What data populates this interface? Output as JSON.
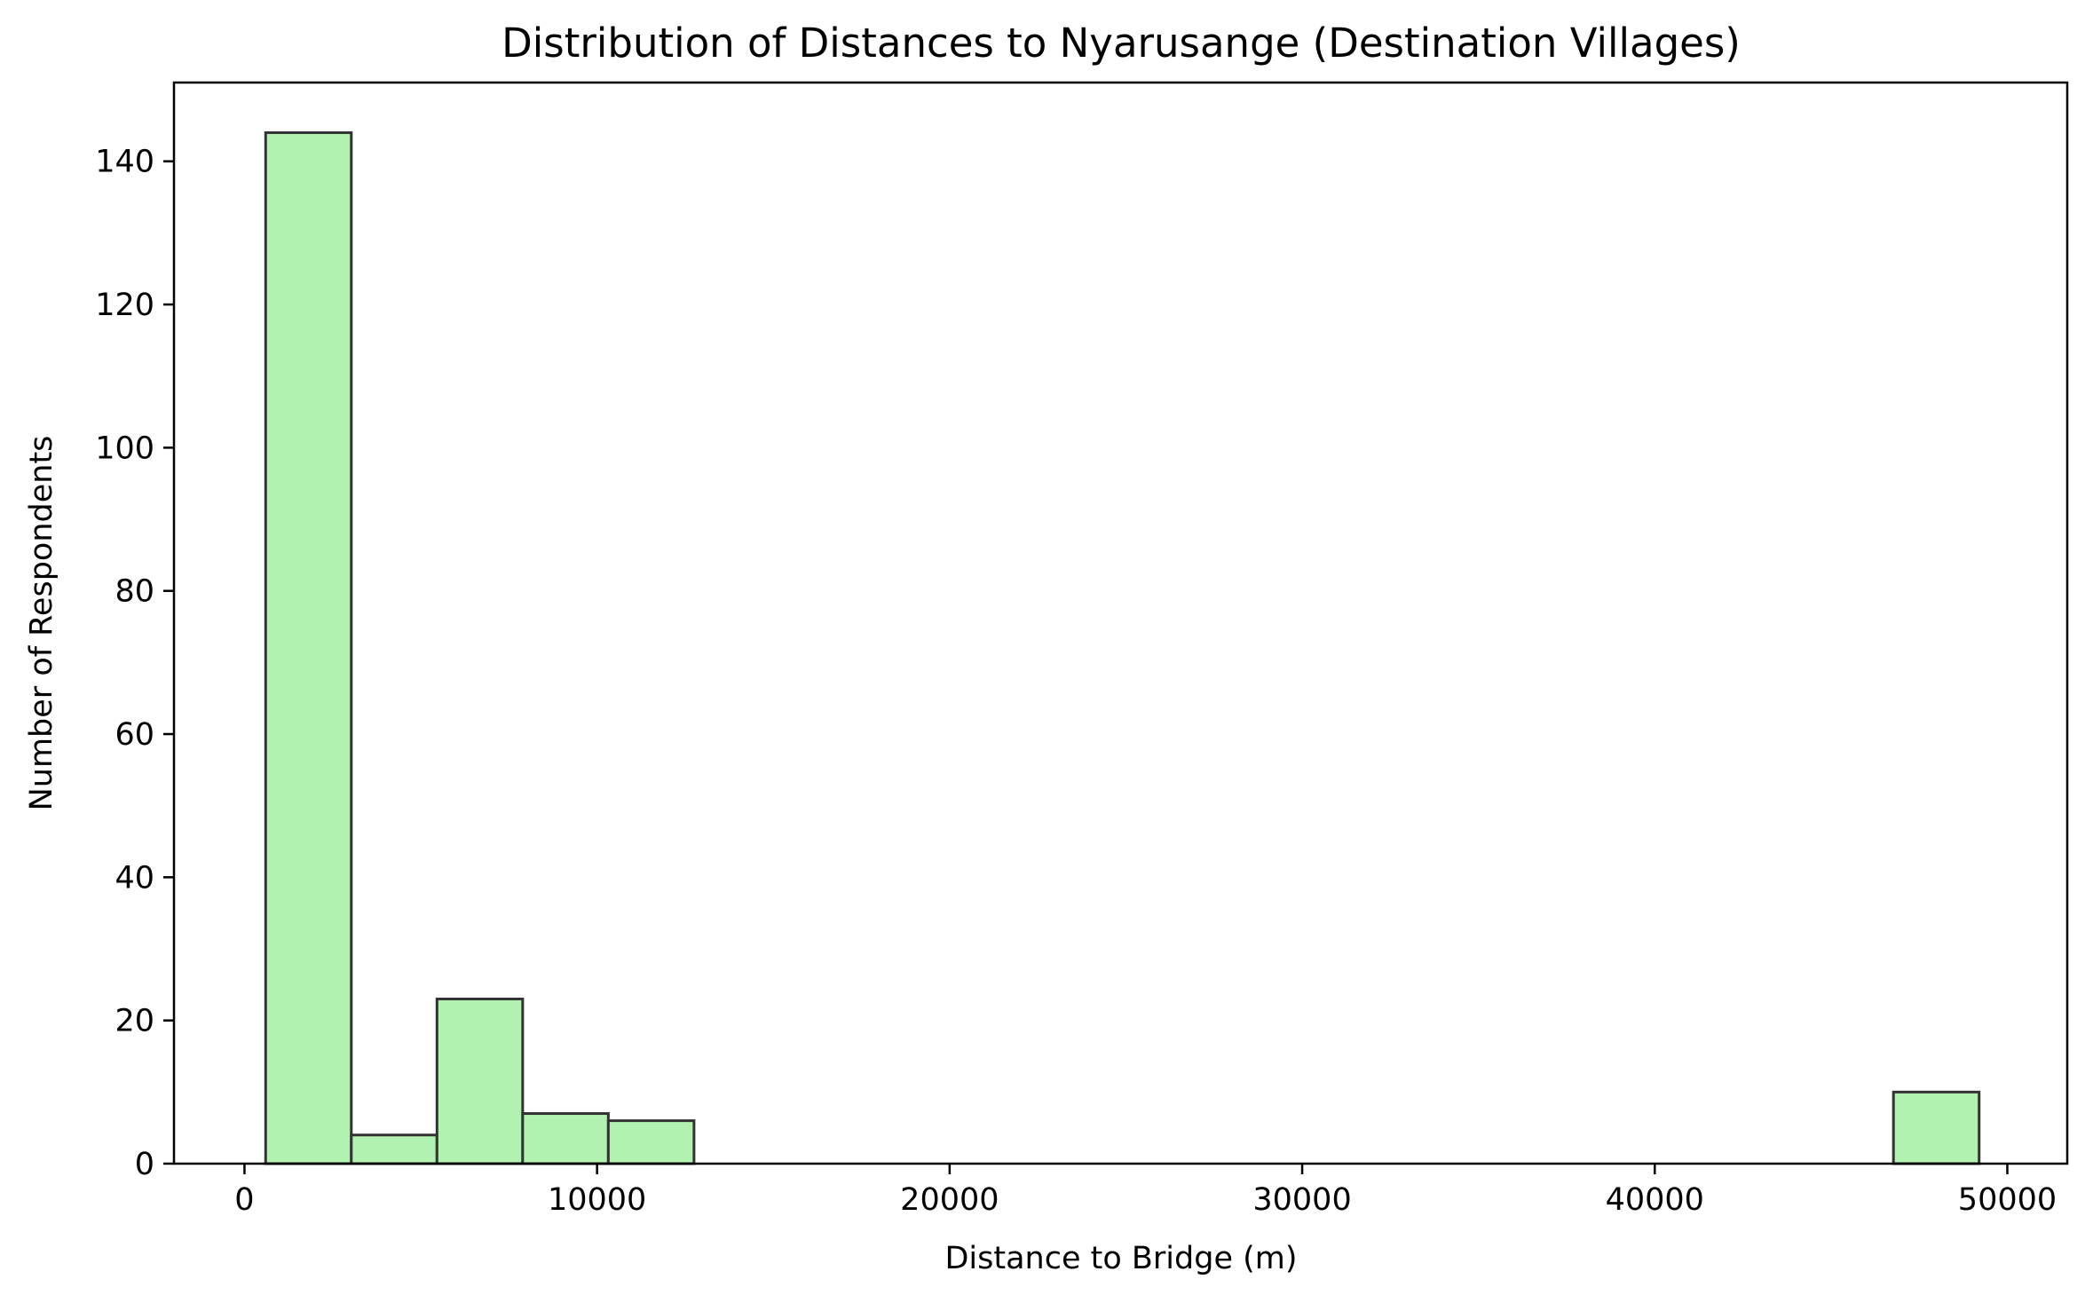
{
  "chart_data": {
    "type": "bar",
    "title": "Distribution of Distances to Nyarusange (Destination Villages)",
    "xlabel": "Distance to Bridge (m)",
    "ylabel": "Number of Respondents",
    "xlim": [
      -2000,
      51700
    ],
    "ylim": [
      0,
      151
    ],
    "x_ticks": [
      0,
      10000,
      20000,
      30000,
      40000,
      50000
    ],
    "y_ticks": [
      0,
      20,
      40,
      60,
      80,
      100,
      120,
      140
    ],
    "grid": false,
    "legend": "none",
    "bar_color": "#b2f2b0",
    "edge_color": "#333333",
    "bins": [
      {
        "x0": 600,
        "x1": 3030,
        "count": 144
      },
      {
        "x0": 3030,
        "x1": 5460,
        "count": 4
      },
      {
        "x0": 5460,
        "x1": 7890,
        "count": 23
      },
      {
        "x0": 7890,
        "x1": 10320,
        "count": 7
      },
      {
        "x0": 10320,
        "x1": 12750,
        "count": 6
      },
      {
        "x0": 12750,
        "x1": 15180,
        "count": 0
      },
      {
        "x0": 15180,
        "x1": 17610,
        "count": 0
      },
      {
        "x0": 17610,
        "x1": 20040,
        "count": 0
      },
      {
        "x0": 20040,
        "x1": 22470,
        "count": 0
      },
      {
        "x0": 22470,
        "x1": 24900,
        "count": 0
      },
      {
        "x0": 24900,
        "x1": 27330,
        "count": 0
      },
      {
        "x0": 27330,
        "x1": 29760,
        "count": 0
      },
      {
        "x0": 29760,
        "x1": 32190,
        "count": 0
      },
      {
        "x0": 32190,
        "x1": 34620,
        "count": 0
      },
      {
        "x0": 34620,
        "x1": 37050,
        "count": 0
      },
      {
        "x0": 37050,
        "x1": 39480,
        "count": 0
      },
      {
        "x0": 39480,
        "x1": 41910,
        "count": 0
      },
      {
        "x0": 41910,
        "x1": 44340,
        "count": 0
      },
      {
        "x0": 44340,
        "x1": 46770,
        "count": 0
      },
      {
        "x0": 46770,
        "x1": 49200,
        "count": 10
      }
    ]
  }
}
